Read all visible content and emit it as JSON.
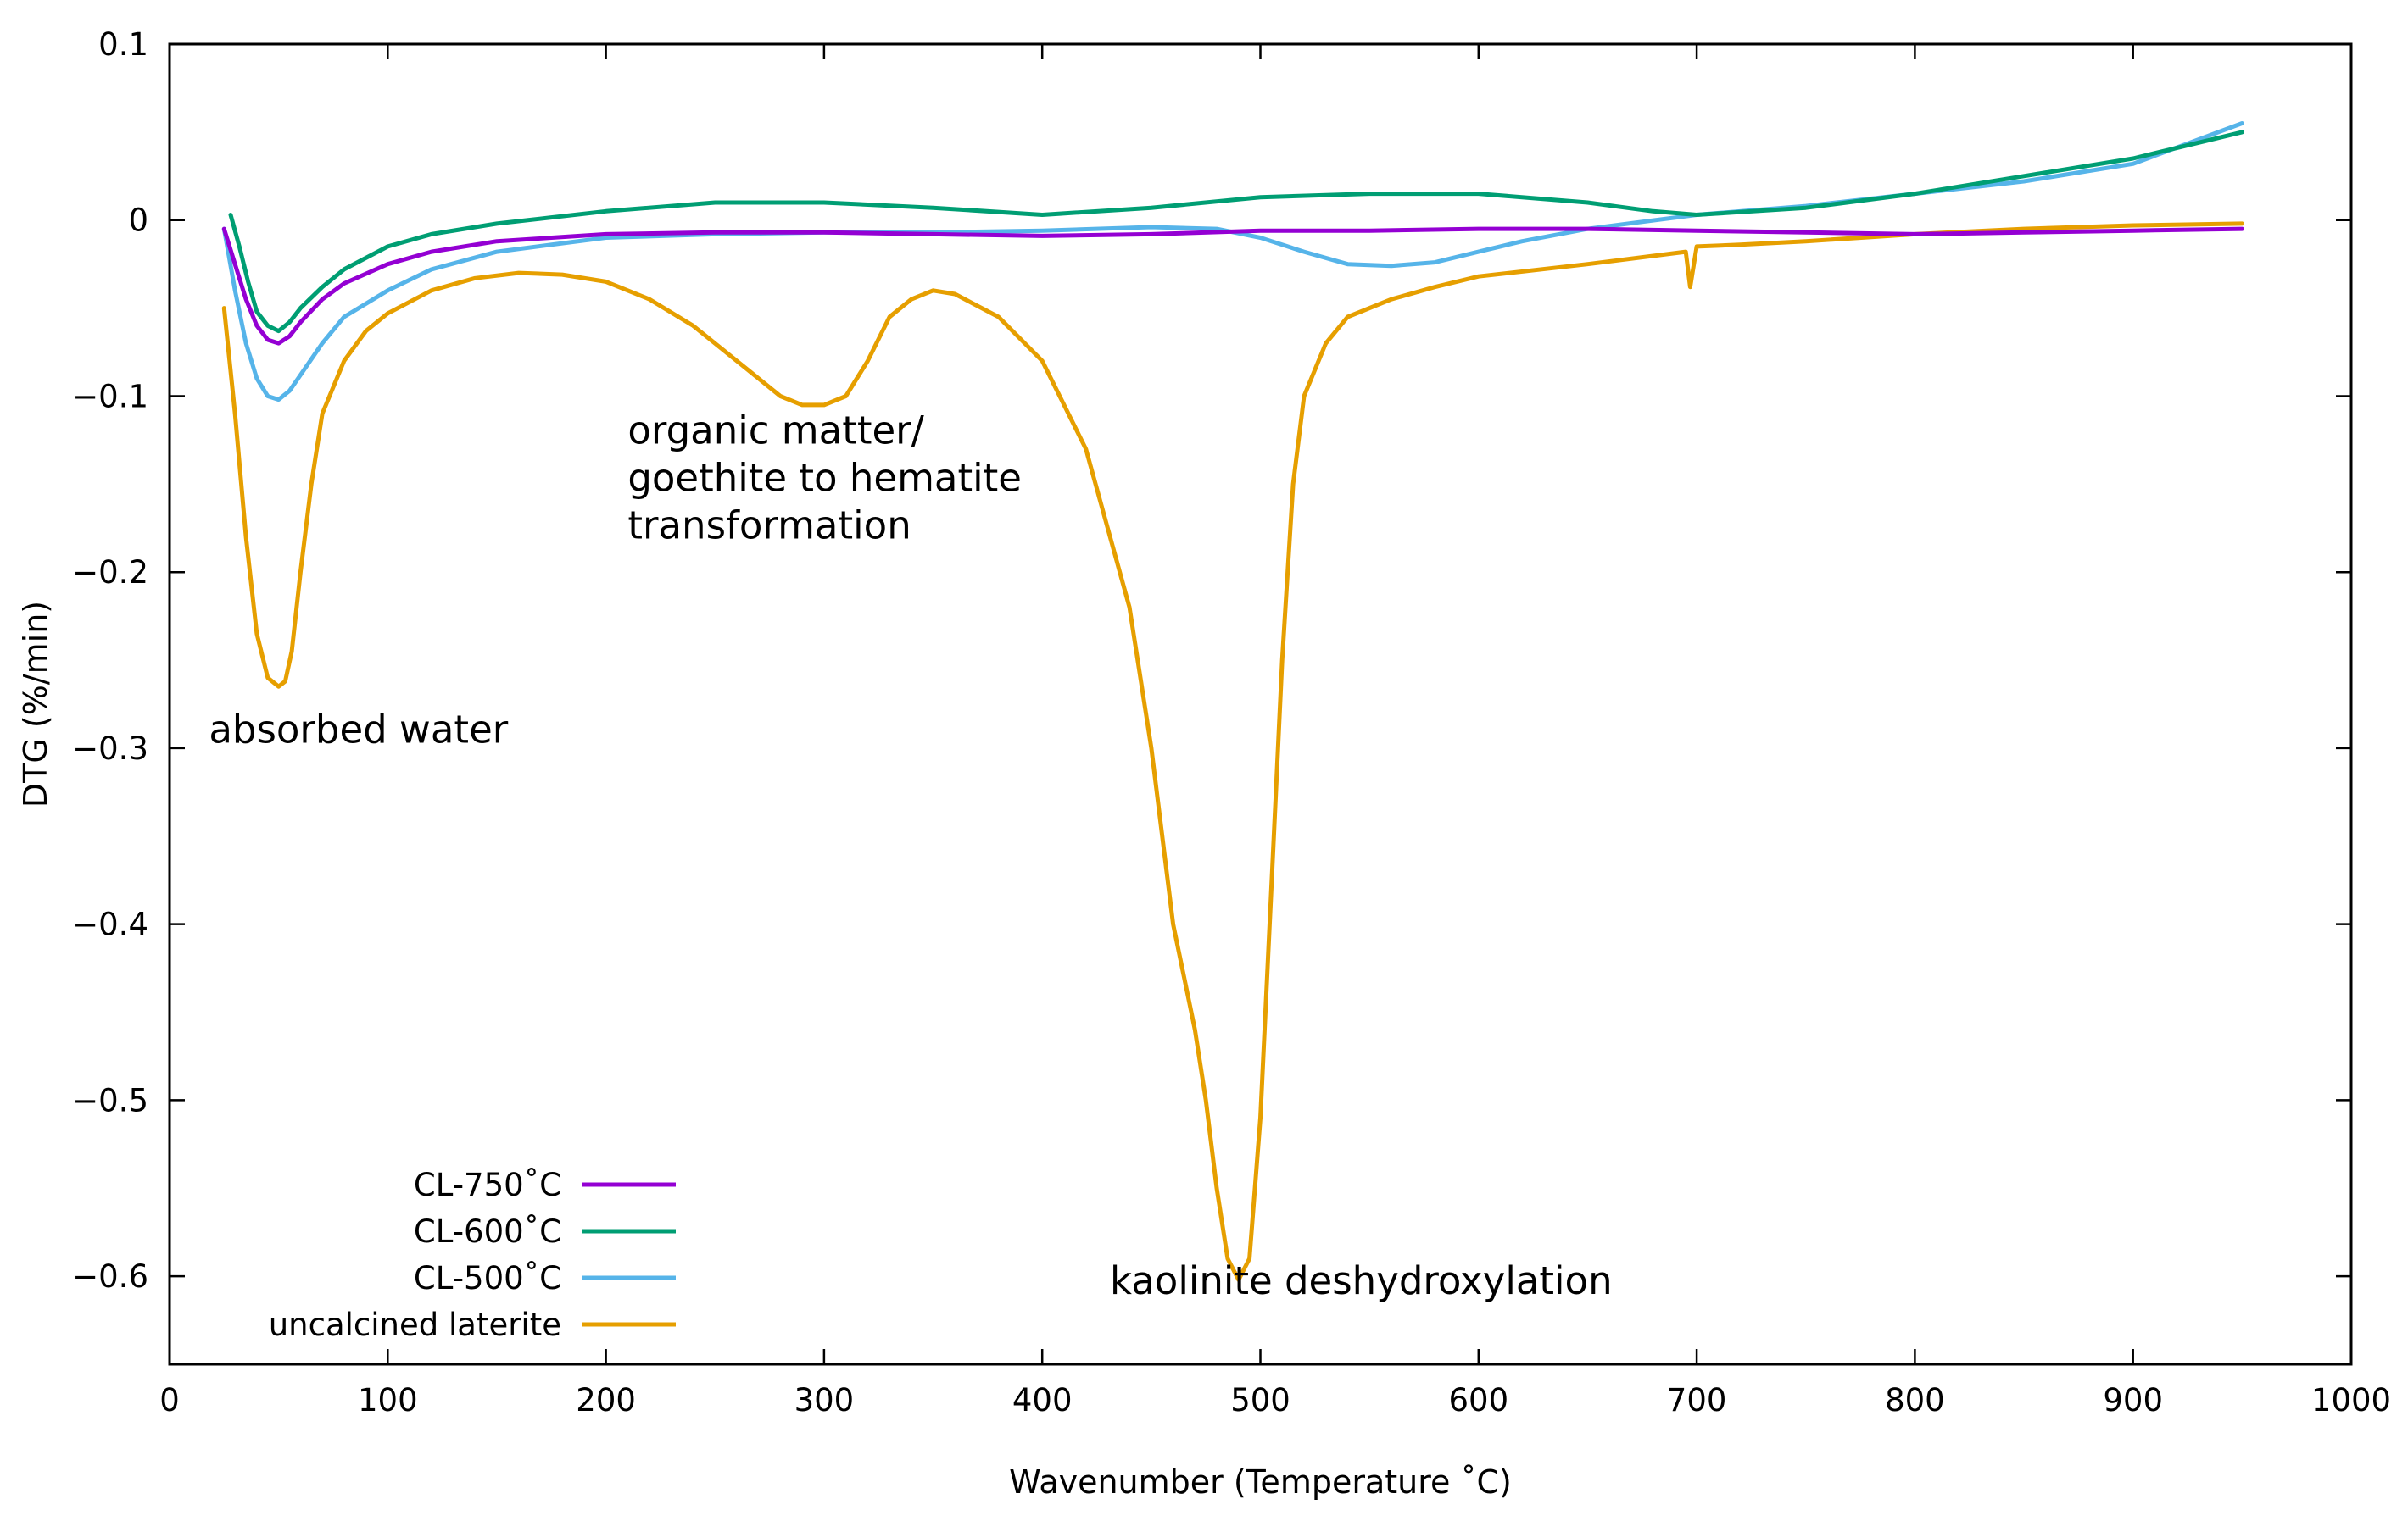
{
  "chart_data": {
    "type": "line",
    "title": "",
    "xlabel": "Wavenumber (Temperature ˚C)",
    "ylabel": "DTG (%/min)",
    "xlim": [
      0,
      1000
    ],
    "ylim": [
      -0.65,
      0.1
    ],
    "xticks": [
      0,
      100,
      200,
      300,
      400,
      500,
      600,
      700,
      800,
      900,
      1000
    ],
    "xtick_labels": [
      "0",
      "100",
      "200",
      "300",
      "400",
      "500",
      "600",
      "700",
      "800",
      "900",
      "1000"
    ],
    "yticks": [
      0.1,
      0,
      -0.1,
      -0.2,
      -0.3,
      -0.4,
      -0.5,
      -0.6
    ],
    "ytick_labels": [
      "0.1",
      "0",
      "−0.1",
      "−0.2",
      "−0.3",
      "−0.4",
      "−0.5",
      "−0.6"
    ],
    "grid": false,
    "legend_position": "bottom-left",
    "series": [
      {
        "name": "CL-750˚C",
        "color": "#9400D3",
        "x": [
          25,
          30,
          35,
          40,
          45,
          50,
          55,
          60,
          70,
          80,
          100,
          120,
          150,
          200,
          250,
          300,
          350,
          400,
          450,
          500,
          550,
          600,
          650,
          700,
          750,
          800,
          850,
          900,
          950
        ],
        "y": [
          -0.005,
          -0.025,
          -0.045,
          -0.06,
          -0.068,
          -0.07,
          -0.066,
          -0.058,
          -0.045,
          -0.036,
          -0.025,
          -0.018,
          -0.012,
          -0.008,
          -0.007,
          -0.007,
          -0.008,
          -0.009,
          -0.008,
          -0.006,
          -0.006,
          -0.005,
          -0.005,
          -0.006,
          -0.007,
          -0.008,
          -0.007,
          -0.006,
          -0.005
        ]
      },
      {
        "name": "CL-600˚C",
        "color": "#009E73",
        "x": [
          28,
          32,
          36,
          40,
          45,
          50,
          55,
          60,
          70,
          80,
          100,
          120,
          150,
          200,
          250,
          300,
          350,
          400,
          450,
          500,
          550,
          600,
          650,
          680,
          700,
          750,
          800,
          850,
          900,
          950
        ],
        "y": [
          0.003,
          -0.015,
          -0.035,
          -0.052,
          -0.06,
          -0.063,
          -0.058,
          -0.05,
          -0.038,
          -0.028,
          -0.015,
          -0.008,
          -0.002,
          0.005,
          0.01,
          0.01,
          0.007,
          0.003,
          0.007,
          0.013,
          0.015,
          0.015,
          0.01,
          0.005,
          0.003,
          0.007,
          0.015,
          0.025,
          0.035,
          0.05
        ]
      },
      {
        "name": "CL-500˚C",
        "color": "#56B4E9",
        "x": [
          25,
          30,
          35,
          40,
          45,
          50,
          55,
          60,
          70,
          80,
          100,
          120,
          150,
          200,
          250,
          300,
          350,
          400,
          450,
          480,
          500,
          520,
          540,
          560,
          580,
          600,
          620,
          650,
          700,
          750,
          800,
          850,
          900,
          950
        ],
        "y": [
          -0.005,
          -0.04,
          -0.07,
          -0.09,
          -0.1,
          -0.102,
          -0.097,
          -0.088,
          -0.07,
          -0.055,
          -0.04,
          -0.028,
          -0.018,
          -0.01,
          -0.008,
          -0.007,
          -0.007,
          -0.006,
          -0.004,
          -0.005,
          -0.01,
          -0.018,
          -0.025,
          -0.026,
          -0.024,
          -0.018,
          -0.012,
          -0.005,
          0.003,
          0.008,
          0.015,
          0.022,
          0.032,
          0.055
        ]
      },
      {
        "name": "uncalcined laterite",
        "color": "#E69F00",
        "x": [
          25,
          30,
          35,
          40,
          45,
          50,
          53,
          56,
          60,
          65,
          70,
          80,
          90,
          100,
          120,
          140,
          160,
          180,
          200,
          220,
          240,
          260,
          280,
          290,
          300,
          310,
          320,
          330,
          340,
          350,
          360,
          380,
          400,
          420,
          440,
          450,
          460,
          470,
          475,
          480,
          485,
          490,
          495,
          500,
          505,
          510,
          515,
          520,
          530,
          540,
          560,
          580,
          600,
          650,
          695,
          697,
          700,
          720,
          750,
          800,
          850,
          900,
          950
        ],
        "y": [
          -0.05,
          -0.11,
          -0.18,
          -0.235,
          -0.26,
          -0.265,
          -0.262,
          -0.245,
          -0.2,
          -0.15,
          -0.11,
          -0.08,
          -0.063,
          -0.053,
          -0.04,
          -0.033,
          -0.03,
          -0.031,
          -0.035,
          -0.045,
          -0.06,
          -0.08,
          -0.1,
          -0.105,
          -0.105,
          -0.1,
          -0.08,
          -0.055,
          -0.045,
          -0.04,
          -0.042,
          -0.055,
          -0.08,
          -0.13,
          -0.22,
          -0.3,
          -0.4,
          -0.46,
          -0.5,
          -0.55,
          -0.59,
          -0.602,
          -0.59,
          -0.51,
          -0.38,
          -0.25,
          -0.15,
          -0.1,
          -0.07,
          -0.055,
          -0.045,
          -0.038,
          -0.032,
          -0.025,
          -0.018,
          -0.038,
          -0.015,
          -0.014,
          -0.012,
          -0.008,
          -0.005,
          -0.003,
          -0.002
        ]
      }
    ],
    "annotations": [
      {
        "text": "absorbed water",
        "x": 18,
        "y": -0.297
      },
      {
        "text": "organic matter/",
        "x": 210,
        "y": -0.127
      },
      {
        "text": "goethite to hematite",
        "x": 210,
        "y": -0.154
      },
      {
        "text": " transformation",
        "x": 210,
        "y": -0.181
      },
      {
        "text": "kaolinite deshydroxylation",
        "x": 431,
        "y": -0.61
      }
    ]
  }
}
